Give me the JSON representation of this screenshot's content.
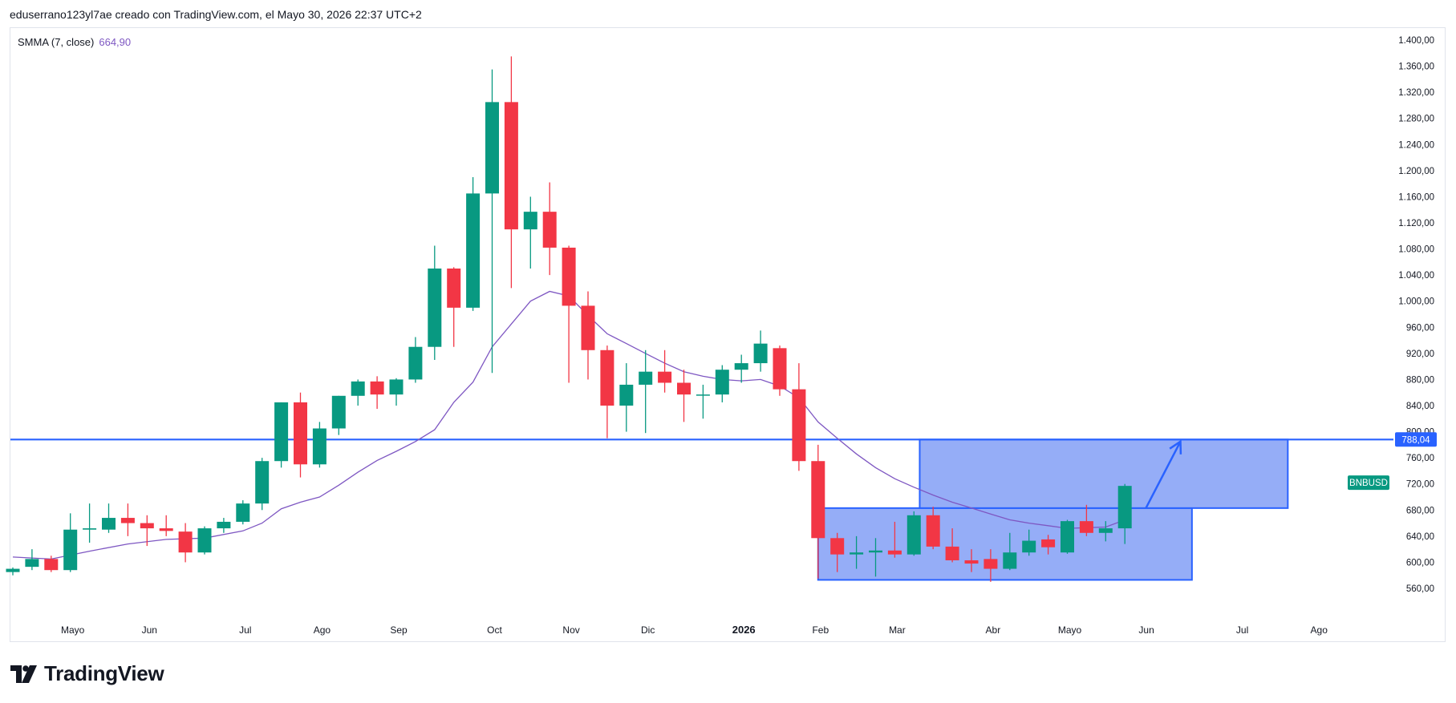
{
  "header": {
    "credit": "eduserrano123yl7ae creado con TradingView.com, el Mayo 30, 2026 22:37 UTC+2"
  },
  "legend": {
    "indicator": "SMMA (7, close)",
    "value": "664,90"
  },
  "logo": {
    "text": "TradingView"
  },
  "colors": {
    "up": "#089981",
    "down": "#f23645",
    "smma": "#7e57c2",
    "line": "#2962ff",
    "box_fill": "#8fa9f7",
    "box_stroke": "#2962ff"
  },
  "chart_data": {
    "type": "candlestick",
    "symbol_tag": "BNBUSD",
    "last_price_tag": "788,04",
    "y_axis": {
      "ticks": [
        "560,00",
        "600,00",
        "640,00",
        "680,00",
        "720,00",
        "760,00",
        "800,00",
        "840,00",
        "880,00",
        "920,00",
        "960,00",
        "1.000,00",
        "1.040,00",
        "1.080,00",
        "1.120,00",
        "1.160,00",
        "1.200,00",
        "1.240,00",
        "1.280,00",
        "1.320,00",
        "1.360,00",
        "1.400,00"
      ],
      "ylim": [
        520,
        1410
      ]
    },
    "x_axis": {
      "labels": [
        {
          "t": 3,
          "label": "Mayo"
        },
        {
          "t": 7,
          "label": "Jun"
        },
        {
          "t": 12,
          "label": "Jul"
        },
        {
          "t": 16,
          "label": "Ago"
        },
        {
          "t": 20,
          "label": "Sep"
        },
        {
          "t": 25,
          "label": "Oct"
        },
        {
          "t": 29,
          "label": "Nov"
        },
        {
          "t": 33,
          "label": "Dic"
        },
        {
          "t": 38,
          "label": "2026",
          "bold": true
        },
        {
          "t": 42,
          "label": "Feb"
        },
        {
          "t": 46,
          "label": "Mar"
        },
        {
          "t": 51,
          "label": "Abr"
        },
        {
          "t": 55,
          "label": "Mayo"
        },
        {
          "t": 59,
          "label": "Jun"
        },
        {
          "t": 64,
          "label": "Jul"
        },
        {
          "t": 68,
          "label": "Ago"
        }
      ]
    },
    "candles": [
      {
        "t": 0,
        "o": 585,
        "h": 592,
        "l": 580,
        "c": 590
      },
      {
        "t": 1,
        "o": 593,
        "h": 620,
        "l": 588,
        "c": 605
      },
      {
        "t": 2,
        "o": 605,
        "h": 610,
        "l": 585,
        "c": 588
      },
      {
        "t": 3,
        "o": 588,
        "h": 675,
        "l": 585,
        "c": 650
      },
      {
        "t": 4,
        "o": 650,
        "h": 690,
        "l": 630,
        "c": 652
      },
      {
        "t": 5,
        "o": 650,
        "h": 690,
        "l": 645,
        "c": 668
      },
      {
        "t": 6,
        "o": 668,
        "h": 690,
        "l": 640,
        "c": 660
      },
      {
        "t": 7,
        "o": 660,
        "h": 672,
        "l": 625,
        "c": 652
      },
      {
        "t": 8,
        "o": 652,
        "h": 672,
        "l": 640,
        "c": 648
      },
      {
        "t": 9,
        "o": 647,
        "h": 660,
        "l": 600,
        "c": 615
      },
      {
        "t": 10,
        "o": 615,
        "h": 655,
        "l": 612,
        "c": 652
      },
      {
        "t": 11,
        "o": 652,
        "h": 668,
        "l": 645,
        "c": 662
      },
      {
        "t": 12,
        "o": 662,
        "h": 695,
        "l": 658,
        "c": 690
      },
      {
        "t": 13,
        "o": 690,
        "h": 760,
        "l": 680,
        "c": 755
      },
      {
        "t": 14,
        "o": 755,
        "h": 845,
        "l": 745,
        "c": 845
      },
      {
        "t": 15,
        "o": 845,
        "h": 860,
        "l": 730,
        "c": 750
      },
      {
        "t": 16,
        "o": 750,
        "h": 815,
        "l": 745,
        "c": 805
      },
      {
        "t": 17,
        "o": 805,
        "h": 855,
        "l": 795,
        "c": 855
      },
      {
        "t": 18,
        "o": 855,
        "h": 880,
        "l": 840,
        "c": 877
      },
      {
        "t": 19,
        "o": 877,
        "h": 885,
        "l": 835,
        "c": 857
      },
      {
        "t": 20,
        "o": 857,
        "h": 882,
        "l": 840,
        "c": 880
      },
      {
        "t": 21,
        "o": 880,
        "h": 945,
        "l": 875,
        "c": 930
      },
      {
        "t": 22,
        "o": 930,
        "h": 1085,
        "l": 910,
        "c": 1050
      },
      {
        "t": 23,
        "o": 1050,
        "h": 1052,
        "l": 930,
        "c": 990
      },
      {
        "t": 24,
        "o": 990,
        "h": 1190,
        "l": 985,
        "c": 1165
      },
      {
        "t": 25,
        "o": 1165,
        "h": 1355,
        "l": 890,
        "c": 1305
      },
      {
        "t": 26,
        "o": 1305,
        "h": 1375,
        "l": 1020,
        "c": 1110
      },
      {
        "t": 27,
        "o": 1110,
        "h": 1160,
        "l": 1050,
        "c": 1137
      },
      {
        "t": 28,
        "o": 1137,
        "h": 1182,
        "l": 1040,
        "c": 1082
      },
      {
        "t": 29,
        "o": 1082,
        "h": 1085,
        "l": 875,
        "c": 993
      },
      {
        "t": 30,
        "o": 993,
        "h": 1015,
        "l": 880,
        "c": 925
      },
      {
        "t": 31,
        "o": 925,
        "h": 932,
        "l": 790,
        "c": 840
      },
      {
        "t": 32,
        "o": 840,
        "h": 905,
        "l": 800,
        "c": 872
      },
      {
        "t": 33,
        "o": 872,
        "h": 925,
        "l": 798,
        "c": 892
      },
      {
        "t": 34,
        "o": 892,
        "h": 925,
        "l": 860,
        "c": 875
      },
      {
        "t": 35,
        "o": 875,
        "h": 895,
        "l": 815,
        "c": 857
      },
      {
        "t": 36,
        "o": 857,
        "h": 872,
        "l": 820,
        "c": 857
      },
      {
        "t": 37,
        "o": 857,
        "h": 902,
        "l": 845,
        "c": 895
      },
      {
        "t": 38,
        "o": 895,
        "h": 918,
        "l": 875,
        "c": 905
      },
      {
        "t": 39,
        "o": 905,
        "h": 955,
        "l": 892,
        "c": 935
      },
      {
        "t": 40,
        "o": 928,
        "h": 932,
        "l": 855,
        "c": 865
      },
      {
        "t": 41,
        "o": 865,
        "h": 905,
        "l": 740,
        "c": 755
      },
      {
        "t": 42,
        "o": 755,
        "h": 780,
        "l": 575,
        "c": 637
      },
      {
        "t": 43,
        "o": 637,
        "h": 645,
        "l": 585,
        "c": 612
      },
      {
        "t": 44,
        "o": 612,
        "h": 640,
        "l": 590,
        "c": 615
      },
      {
        "t": 45,
        "o": 615,
        "h": 637,
        "l": 578,
        "c": 618
      },
      {
        "t": 46,
        "o": 618,
        "h": 662,
        "l": 607,
        "c": 612
      },
      {
        "t": 47,
        "o": 612,
        "h": 678,
        "l": 610,
        "c": 672
      },
      {
        "t": 48,
        "o": 672,
        "h": 685,
        "l": 620,
        "c": 624
      },
      {
        "t": 49,
        "o": 624,
        "h": 652,
        "l": 600,
        "c": 603
      },
      {
        "t": 50,
        "o": 603,
        "h": 620,
        "l": 585,
        "c": 598
      },
      {
        "t": 51,
        "o": 605,
        "h": 620,
        "l": 570,
        "c": 590
      },
      {
        "t": 52,
        "o": 590,
        "h": 645,
        "l": 588,
        "c": 615
      },
      {
        "t": 53,
        "o": 615,
        "h": 650,
        "l": 610,
        "c": 633
      },
      {
        "t": 54,
        "o": 635,
        "h": 642,
        "l": 612,
        "c": 623
      },
      {
        "t": 55,
        "o": 615,
        "h": 665,
        "l": 613,
        "c": 663
      },
      {
        "t": 56,
        "o": 663,
        "h": 688,
        "l": 640,
        "c": 645
      },
      {
        "t": 57,
        "o": 645,
        "h": 663,
        "l": 632,
        "c": 652
      },
      {
        "t": 58,
        "o": 652,
        "h": 720,
        "l": 628,
        "c": 717
      }
    ],
    "smma": [
      {
        "t": 0,
        "v": 608
      },
      {
        "t": 2,
        "v": 605
      },
      {
        "t": 4,
        "v": 617
      },
      {
        "t": 6,
        "v": 628
      },
      {
        "t": 8,
        "v": 635
      },
      {
        "t": 10,
        "v": 637
      },
      {
        "t": 12,
        "v": 648
      },
      {
        "t": 13,
        "v": 660
      },
      {
        "t": 14,
        "v": 682
      },
      {
        "t": 15,
        "v": 692
      },
      {
        "t": 16,
        "v": 700
      },
      {
        "t": 17,
        "v": 718
      },
      {
        "t": 18,
        "v": 738
      },
      {
        "t": 19,
        "v": 756
      },
      {
        "t": 20,
        "v": 770
      },
      {
        "t": 21,
        "v": 785
      },
      {
        "t": 22,
        "v": 803
      },
      {
        "t": 23,
        "v": 845
      },
      {
        "t": 24,
        "v": 876
      },
      {
        "t": 25,
        "v": 930
      },
      {
        "t": 26,
        "v": 965
      },
      {
        "t": 27,
        "v": 1000
      },
      {
        "t": 28,
        "v": 1015
      },
      {
        "t": 29,
        "v": 1008
      },
      {
        "t": 30,
        "v": 978
      },
      {
        "t": 31,
        "v": 950
      },
      {
        "t": 32,
        "v": 935
      },
      {
        "t": 33,
        "v": 920
      },
      {
        "t": 34,
        "v": 905
      },
      {
        "t": 35,
        "v": 892
      },
      {
        "t": 36,
        "v": 885
      },
      {
        "t": 37,
        "v": 880
      },
      {
        "t": 38,
        "v": 878
      },
      {
        "t": 39,
        "v": 880
      },
      {
        "t": 40,
        "v": 870
      },
      {
        "t": 41,
        "v": 852
      },
      {
        "t": 42,
        "v": 815
      },
      {
        "t": 43,
        "v": 790
      },
      {
        "t": 44,
        "v": 766
      },
      {
        "t": 45,
        "v": 745
      },
      {
        "t": 46,
        "v": 728
      },
      {
        "t": 47,
        "v": 715
      },
      {
        "t": 48,
        "v": 703
      },
      {
        "t": 49,
        "v": 692
      },
      {
        "t": 50,
        "v": 683
      },
      {
        "t": 51,
        "v": 674
      },
      {
        "t": 52,
        "v": 665
      },
      {
        "t": 53,
        "v": 660
      },
      {
        "t": 54,
        "v": 656
      },
      {
        "t": 55,
        "v": 652
      },
      {
        "t": 56,
        "v": 653
      },
      {
        "t": 57,
        "v": 654
      },
      {
        "t": 58,
        "v": 664.9
      }
    ],
    "horizontal_line": 788.04,
    "boxes": [
      {
        "t0": 42,
        "t1": 61.5,
        "y0": 573,
        "y1": 683
      },
      {
        "t0": 47.3,
        "t1": 66.5,
        "y0": 683,
        "y1": 788
      }
    ],
    "arrow": {
      "t0": 59.1,
      "y0": 683,
      "t1": 60.9,
      "y1": 785
    }
  }
}
